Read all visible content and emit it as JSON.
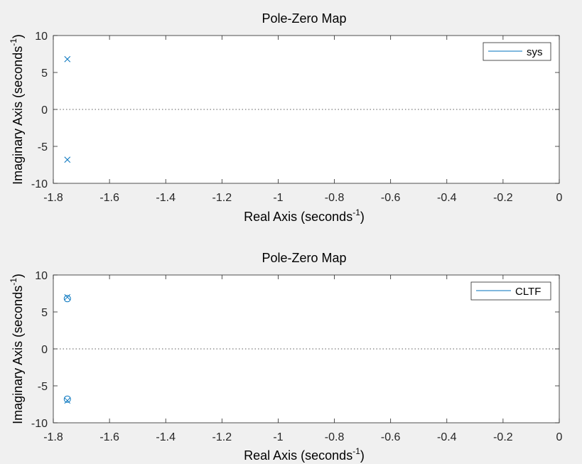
{
  "colors": {
    "background": "#f0f0f0",
    "axes_bg": "#ffffff",
    "axis": "#262626",
    "tick_label": "#262626",
    "series": "#0072BD",
    "zero_line": "#262626"
  },
  "chart_data": [
    {
      "type": "scatter",
      "title": "Pole-Zero Map",
      "xlabel": "Real Axis (seconds",
      "xlabel_sup": "-1",
      "xlabel_end": ")",
      "ylabel": "Imaginary Axis (seconds",
      "ylabel_sup": "-1",
      "ylabel_end": ")",
      "xlim": [
        -1.8,
        0
      ],
      "ylim": [
        -10,
        10
      ],
      "xticks": [
        -1.8,
        -1.6,
        -1.4,
        -1.2,
        -1,
        -0.8,
        -0.6,
        -0.4,
        -0.2,
        0
      ],
      "yticks": [
        -10,
        -5,
        0,
        5,
        10
      ],
      "xtick_labels": [
        "-1.8",
        "-1.6",
        "-1.4",
        "-1.2",
        "-1",
        "-0.8",
        "-0.6",
        "-0.4",
        "-0.2",
        "0"
      ],
      "ytick_labels": [
        "-10",
        "-5",
        "0",
        "5",
        "10"
      ],
      "grid": false,
      "legend": {
        "position": "top-right",
        "entries": [
          "sys"
        ]
      },
      "poles": [
        {
          "x": -1.75,
          "y": 6.8
        },
        {
          "x": -1.75,
          "y": -6.8
        }
      ],
      "zeros": []
    },
    {
      "type": "scatter",
      "title": "Pole-Zero Map",
      "xlabel": "Real Axis (seconds",
      "xlabel_sup": "-1",
      "xlabel_end": ")",
      "ylabel": "Imaginary Axis (seconds",
      "ylabel_sup": "-1",
      "ylabel_end": ")",
      "xlim": [
        -1.8,
        0
      ],
      "ylim": [
        -10,
        10
      ],
      "xticks": [
        -1.8,
        -1.6,
        -1.4,
        -1.2,
        -1,
        -0.8,
        -0.6,
        -0.4,
        -0.2,
        0
      ],
      "yticks": [
        -10,
        -5,
        0,
        5,
        10
      ],
      "xtick_labels": [
        "-1.8",
        "-1.6",
        "-1.4",
        "-1.2",
        "-1",
        "-0.8",
        "-0.6",
        "-0.4",
        "-0.2",
        "0"
      ],
      "ytick_labels": [
        "-10",
        "-5",
        "0",
        "5",
        "10"
      ],
      "grid": false,
      "legend": {
        "position": "top-right",
        "entries": [
          "CLTF"
        ]
      },
      "poles": [
        {
          "x": -1.75,
          "y": 7.0
        },
        {
          "x": -1.75,
          "y": -7.0
        }
      ],
      "zeros": [
        {
          "x": -1.75,
          "y": 6.8
        },
        {
          "x": -1.75,
          "y": -6.8
        }
      ]
    }
  ]
}
